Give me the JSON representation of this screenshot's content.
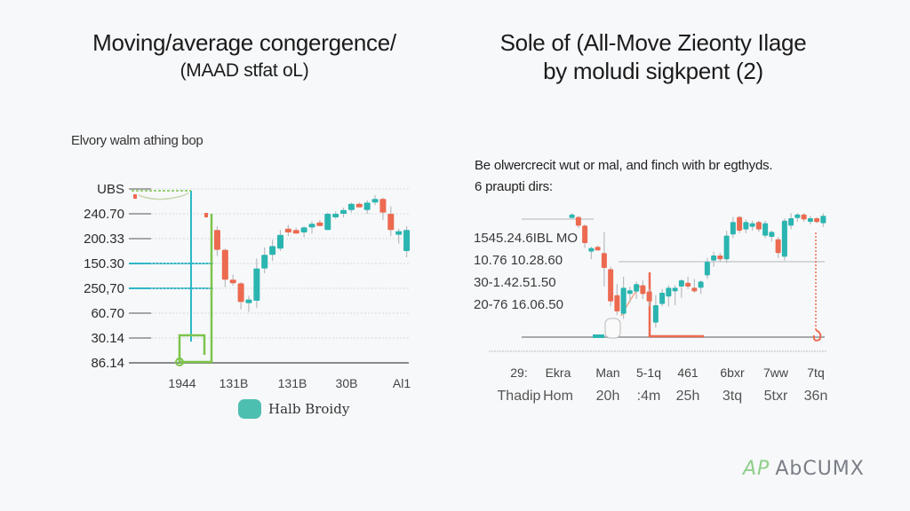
{
  "colors": {
    "up": "#2bb5b0",
    "down": "#ec6a50",
    "grid": "#9a9a9a",
    "gridLight": "#d6dadd",
    "highlightTeal": "#2db7c7",
    "highlightGreen": "#7cc44a",
    "legend": "#4dbfb0"
  },
  "logo": {
    "mark": "AP",
    "text": "AbCUMX"
  },
  "chart_data": [
    {
      "type": "candlestick",
      "title_line1": "Moving/average congergence/",
      "title_line2": "(MAAD stfat oL)",
      "subtitle": "Elvory walm athing bop",
      "yticks": [
        "UBS",
        "240.70",
        "200.33",
        "150.30",
        "250,70",
        "60.70",
        "30.14",
        "86.14"
      ],
      "highlighted_yticks": [
        "150.30",
        "250,70"
      ],
      "xticks": [
        "1944",
        "131B",
        "131B",
        "30B",
        "Al1"
      ],
      "legend": [
        {
          "label": "Halb Broidy",
          "color": "#4dbfb0"
        }
      ],
      "ylim": [
        0,
        7
      ],
      "candles": [
        {
          "o": 5.35,
          "h": 5.5,
          "l": 4.3,
          "c": 4.55
        },
        {
          "o": 4.55,
          "h": 4.6,
          "l": 3.05,
          "c": 3.35
        },
        {
          "o": 3.35,
          "h": 3.55,
          "l": 3.1,
          "c": 3.25
        },
        {
          "o": 3.2,
          "h": 3.25,
          "l": 2.15,
          "c": 2.45
        },
        {
          "o": 2.4,
          "h": 2.7,
          "l": 2.05,
          "c": 2.55
        },
        {
          "o": 2.5,
          "h": 4.2,
          "l": 2.2,
          "c": 3.8
        },
        {
          "o": 3.8,
          "h": 4.65,
          "l": 3.6,
          "c": 4.35
        },
        {
          "o": 4.35,
          "h": 4.95,
          "l": 4.1,
          "c": 4.7
        },
        {
          "o": 4.6,
          "h": 5.35,
          "l": 4.5,
          "c": 5.15
        },
        {
          "o": 5.4,
          "h": 5.55,
          "l": 5.1,
          "c": 5.25
        },
        {
          "o": 5.35,
          "h": 5.45,
          "l": 5.2,
          "c": 5.3
        },
        {
          "o": 5.25,
          "h": 5.5,
          "l": 5.05,
          "c": 5.45
        },
        {
          "o": 5.45,
          "h": 5.7,
          "l": 5.2,
          "c": 5.6
        },
        {
          "o": 5.65,
          "h": 5.75,
          "l": 5.5,
          "c": 5.6
        },
        {
          "o": 5.35,
          "h": 6.05,
          "l": 5.35,
          "c": 6.0
        },
        {
          "o": 5.95,
          "h": 6.1,
          "l": 5.8,
          "c": 6.0
        },
        {
          "o": 6.0,
          "h": 6.25,
          "l": 5.85,
          "c": 6.15
        },
        {
          "o": 6.15,
          "h": 6.45,
          "l": 6.05,
          "c": 6.4
        },
        {
          "o": 6.4,
          "h": 6.45,
          "l": 6.3,
          "c": 6.35
        },
        {
          "o": 6.15,
          "h": 6.55,
          "l": 6.0,
          "c": 6.45
        },
        {
          "o": 6.5,
          "h": 6.75,
          "l": 6.35,
          "c": 6.6
        },
        {
          "o": 6.6,
          "h": 6.65,
          "l": 5.75,
          "c": 6.05
        },
        {
          "o": 6.0,
          "h": 6.3,
          "l": 5.1,
          "c": 5.35
        },
        {
          "o": 5.25,
          "h": 5.4,
          "l": 4.8,
          "c": 5.3
        },
        {
          "o": 4.5,
          "h": 5.5,
          "l": 4.25,
          "c": 5.35
        }
      ]
    },
    {
      "type": "candlestick",
      "title_line1": "Sole of (All-Move Zieonty Ilage",
      "title_line2": "by moludi sigkpent (2)",
      "desc_line1": "Be olwercrecit wut or mal, and finch with br egthyds.",
      "desc_line2": "6 praupti dirs:",
      "row_labels": [
        "1545.24.6IBL MO",
        "10.76 10.28.60",
        "30-1.42.51.50",
        "20-76 16.06.50"
      ],
      "xticks_row1": [
        "29:",
        "Ekra",
        "Man",
        "5-1q",
        "461",
        "6bxr",
        "7ww",
        "7tq"
      ],
      "xticks_row2": [
        "Thadip",
        "Hom",
        "20h",
        ":4m",
        "25h",
        "3tq",
        "5txr",
        "36n"
      ],
      "ylim": [
        0,
        10
      ],
      "candles": [
        {
          "o": 9.3,
          "h": 9.4,
          "l": 9.2,
          "c": 9.3
        },
        {
          "o": 9.1,
          "h": 9.2,
          "l": 8.2,
          "c": 8.4
        },
        {
          "o": 8.4,
          "h": 8.5,
          "l": 6.6,
          "c": 7.0
        },
        {
          "o": 6.4,
          "h": 6.7,
          "l": 5.7,
          "c": 6.6
        },
        {
          "o": 6.7,
          "h": 6.8,
          "l": 6.4,
          "c": 6.5
        },
        {
          "o": 6.2,
          "h": 7.9,
          "l": 3.5,
          "c": 5.0
        },
        {
          "o": 4.9,
          "h": 5.1,
          "l": 1.9,
          "c": 2.3
        },
        {
          "o": 2.8,
          "h": 3.7,
          "l": 1.2,
          "c": 1.5
        },
        {
          "o": 1.3,
          "h": 4.3,
          "l": 0.9,
          "c": 3.4
        },
        {
          "o": 3.0,
          "h": 3.5,
          "l": 2.2,
          "c": 3.2
        },
        {
          "o": 3.1,
          "h": 3.9,
          "l": 2.5,
          "c": 3.7
        },
        {
          "o": 3.6,
          "h": 4.0,
          "l": 2.5,
          "c": 2.9
        },
        {
          "o": 3.1,
          "h": 3.3,
          "l": 1.9,
          "c": 2.3
        },
        {
          "o": 0.6,
          "h": 2.8,
          "l": 0.2,
          "c": 2.0
        },
        {
          "o": 2.1,
          "h": 3.3,
          "l": 1.9,
          "c": 3.0
        },
        {
          "o": 2.7,
          "h": 3.6,
          "l": 1.9,
          "c": 3.4
        },
        {
          "o": 3.3,
          "h": 3.6,
          "l": 2.0,
          "c": 3.4
        },
        {
          "o": 3.5,
          "h": 4.1,
          "l": 2.6,
          "c": 4.0
        },
        {
          "o": 3.8,
          "h": 4.3,
          "l": 3.3,
          "c": 3.5
        },
        {
          "o": 3.4,
          "h": 4.1,
          "l": 3.0,
          "c": 3.3
        },
        {
          "o": 3.4,
          "h": 4.0,
          "l": 2.9,
          "c": 3.9
        },
        {
          "o": 4.4,
          "h": 5.8,
          "l": 4.1,
          "c": 5.5
        },
        {
          "o": 5.6,
          "h": 6.3,
          "l": 5.1,
          "c": 6.0
        },
        {
          "o": 6.0,
          "h": 6.2,
          "l": 5.5,
          "c": 5.7
        },
        {
          "o": 5.7,
          "h": 8.0,
          "l": 5.4,
          "c": 7.6
        },
        {
          "o": 7.7,
          "h": 9.1,
          "l": 7.4,
          "c": 8.7
        },
        {
          "o": 9.1,
          "h": 9.2,
          "l": 7.8,
          "c": 8.0
        },
        {
          "o": 8.1,
          "h": 8.9,
          "l": 7.8,
          "c": 8.7
        },
        {
          "o": 8.4,
          "h": 8.8,
          "l": 8.0,
          "c": 8.6
        },
        {
          "o": 8.7,
          "h": 8.8,
          "l": 7.9,
          "c": 8.1
        },
        {
          "o": 7.6,
          "h": 8.8,
          "l": 7.4,
          "c": 8.6
        },
        {
          "o": 7.5,
          "h": 8.0,
          "l": 7.1,
          "c": 7.9
        },
        {
          "o": 7.3,
          "h": 7.5,
          "l": 5.8,
          "c": 6.2
        },
        {
          "o": 5.9,
          "h": 9.0,
          "l": 5.6,
          "c": 8.8
        },
        {
          "o": 8.4,
          "h": 9.4,
          "l": 8.1,
          "c": 9.0
        },
        {
          "o": 9.1,
          "h": 9.4,
          "l": 8.7,
          "c": 9.3
        },
        {
          "o": 9.3,
          "h": 9.4,
          "l": 8.7,
          "c": 8.9
        },
        {
          "o": 8.8,
          "h": 9.2,
          "l": 8.5,
          "c": 9.0
        },
        {
          "o": 9.0,
          "h": 9.1,
          "l": 8.6,
          "c": 8.7
        },
        {
          "o": 8.6,
          "h": 9.4,
          "l": 8.3,
          "c": 9.2
        }
      ]
    }
  ]
}
